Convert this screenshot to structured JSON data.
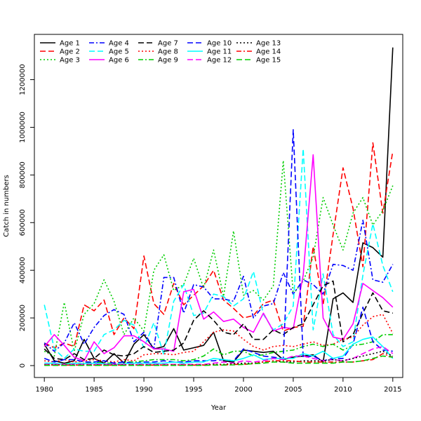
{
  "chart_data": {
    "type": "line",
    "title": "",
    "xlabel": "Year",
    "ylabel": "Catch in numbers",
    "xlim": [
      1979,
      2016
    ],
    "ylim": [
      -50000,
      1390000
    ],
    "xticks": [
      1980,
      1985,
      1990,
      1995,
      2000,
      2005,
      2010,
      2015
    ],
    "yticks": [
      0,
      200000,
      400000,
      600000,
      800000,
      1000000,
      1200000
    ],
    "legend_position": "top-left",
    "x": [
      1980,
      1981,
      1982,
      1983,
      1984,
      1985,
      1986,
      1987,
      1988,
      1989,
      1990,
      1991,
      1992,
      1993,
      1994,
      1995,
      1996,
      1997,
      1998,
      1999,
      2000,
      2001,
      2002,
      2003,
      2004,
      2005,
      2006,
      2007,
      2008,
      2009,
      2010,
      2011,
      2012,
      2013,
      2014,
      2015
    ],
    "series": [
      {
        "name": "Age 1",
        "color": "#000000",
        "dash": "solid",
        "values": [
          90000,
          20000,
          10000,
          20000,
          110000,
          30000,
          10000,
          50000,
          10000,
          90000,
          130000,
          70000,
          80000,
          155000,
          65000,
          75000,
          85000,
          140000,
          20000,
          15000,
          65000,
          60000,
          55000,
          60000,
          25000,
          35000,
          40000,
          45000,
          15000,
          280000,
          305000,
          265000,
          515000,
          495000,
          455000,
          1335000
        ]
      },
      {
        "name": "Age 2",
        "color": "#ff0000",
        "dash": "8,4",
        "values": [
          95000,
          75000,
          95000,
          80000,
          255000,
          230000,
          275000,
          130000,
          200000,
          155000,
          460000,
          260000,
          215000,
          345000,
          255000,
          295000,
          335000,
          400000,
          275000,
          240000,
          200000,
          210000,
          260000,
          275000,
          145000,
          160000,
          165000,
          500000,
          255000,
          550000,
          830000,
          660000,
          415000,
          935000,
          640000,
          900000
        ]
      },
      {
        "name": "Age 3",
        "color": "#00cd00",
        "dash": "2,3",
        "values": [
          60000,
          40000,
          265000,
          60000,
          215000,
          260000,
          360000,
          270000,
          130000,
          200000,
          145000,
          400000,
          465000,
          315000,
          340000,
          450000,
          325000,
          485000,
          290000,
          565000,
          295000,
          315000,
          275000,
          335000,
          860000,
          300000,
          355000,
          455000,
          705000,
          590000,
          485000,
          640000,
          705000,
          590000,
          650000,
          755000
        ]
      },
      {
        "name": "Age 4",
        "color": "#0000ff",
        "dash": "7,3,2,3",
        "values": [
          95000,
          60000,
          95000,
          180000,
          90000,
          160000,
          210000,
          235000,
          215000,
          100000,
          140000,
          70000,
          370000,
          370000,
          220000,
          340000,
          330000,
          280000,
          280000,
          270000,
          375000,
          200000,
          250000,
          260000,
          390000,
          300000,
          360000,
          340000,
          300000,
          425000,
          420000,
          400000,
          610000,
          360000,
          350000,
          425000
        ]
      },
      {
        "name": "Age 5",
        "color": "#00ffff",
        "dash": "8,4",
        "values": [
          255000,
          70000,
          30000,
          70000,
          60000,
          60000,
          130000,
          150000,
          190000,
          170000,
          75000,
          180000,
          45000,
          270000,
          340000,
          210000,
          220000,
          300000,
          290000,
          250000,
          280000,
          395000,
          215000,
          150000,
          175000,
          250000,
          910000,
          150000,
          385000,
          130000,
          80000,
          100000,
          380000,
          595000,
          420000,
          310000
        ]
      },
      {
        "name": "Age 6",
        "color": "#ff00ff",
        "dash": "solid",
        "values": [
          80000,
          130000,
          85000,
          35000,
          20000,
          100000,
          50000,
          75000,
          125000,
          125000,
          100000,
          70000,
          70000,
          60000,
          310000,
          320000,
          195000,
          225000,
          185000,
          195000,
          160000,
          140000,
          220000,
          145000,
          160000,
          155000,
          380000,
          885000,
          200000,
          120000,
          110000,
          175000,
          345000,
          315000,
          285000,
          245000
        ]
      },
      {
        "name": "Age 7",
        "color": "#000000",
        "dash": "8,4",
        "values": [
          70000,
          30000,
          25000,
          50000,
          25000,
          30000,
          65000,
          45000,
          40000,
          50000,
          80000,
          55000,
          60000,
          65000,
          95000,
          190000,
          230000,
          190000,
          140000,
          130000,
          175000,
          110000,
          110000,
          150000,
          130000,
          160000,
          175000,
          255000,
          335000,
          355000,
          100000,
          130000,
          220000,
          305000,
          230000,
          220000
        ]
      },
      {
        "name": "Age 8",
        "color": "#ff0000",
        "dash": "2,3",
        "values": [
          20000,
          15000,
          25000,
          15000,
          20000,
          25000,
          20000,
          15000,
          25000,
          20000,
          45000,
          50000,
          50000,
          45000,
          55000,
          60000,
          100000,
          140000,
          150000,
          145000,
          110000,
          80000,
          65000,
          80000,
          85000,
          80000,
          90000,
          100000,
          85000,
          90000,
          110000,
          120000,
          170000,
          205000,
          215000,
          135000
        ]
      },
      {
        "name": "Age 9",
        "color": "#00cd00",
        "dash": "7,3,2,3",
        "values": [
          5000,
          5000,
          8000,
          10000,
          10000,
          15000,
          10000,
          10000,
          15000,
          15000,
          20000,
          25000,
          25000,
          25000,
          20000,
          25000,
          40000,
          70000,
          45000,
          60000,
          60000,
          40000,
          45000,
          55000,
          60000,
          65000,
          80000,
          90000,
          80000,
          90000,
          65000,
          85000,
          90000,
          100000,
          130000,
          130000
        ]
      },
      {
        "name": "Age 10",
        "color": "#0000ff",
        "dash": "8,4",
        "values": [
          30000,
          15000,
          25000,
          25000,
          15000,
          15000,
          20000,
          10000,
          15000,
          10000,
          15000,
          15000,
          20000,
          15000,
          15000,
          20000,
          20000,
          20000,
          25000,
          20000,
          70000,
          55000,
          40000,
          35000,
          30000,
          990000,
          35000,
          40000,
          20000,
          30000,
          30000,
          90000,
          245000,
          100000,
          65000,
          60000
        ]
      },
      {
        "name": "Age 11",
        "color": "#00ffff",
        "dash": "solid",
        "values": [
          10000,
          10000,
          5000,
          10000,
          8000,
          10000,
          8000,
          5000,
          8000,
          10000,
          10000,
          10000,
          10000,
          15000,
          10000,
          15000,
          15000,
          30000,
          25000,
          20000,
          30000,
          45000,
          25000,
          30000,
          30000,
          30000,
          50000,
          40000,
          60000,
          30000,
          40000,
          90000,
          110000,
          120000,
          80000,
          30000
        ]
      },
      {
        "name": "Age 12",
        "color": "#ff00ff",
        "dash": "8,4",
        "values": [
          5000,
          5000,
          5000,
          5000,
          5000,
          5000,
          5000,
          5000,
          5000,
          5000,
          5000,
          5000,
          5000,
          5000,
          5000,
          5000,
          5000,
          10000,
          15000,
          10000,
          20000,
          15000,
          20000,
          30000,
          25000,
          40000,
          40000,
          30000,
          20000,
          25000,
          20000,
          30000,
          50000,
          70000,
          80000,
          50000
        ]
      },
      {
        "name": "Age 13",
        "color": "#000000",
        "dash": "2,3",
        "values": [
          3000,
          3000,
          3000,
          3000,
          3000,
          3000,
          3000,
          3000,
          3000,
          3000,
          3000,
          3000,
          3000,
          3000,
          3000,
          3000,
          3000,
          5000,
          5000,
          8000,
          10000,
          10000,
          15000,
          20000,
          15000,
          15000,
          20000,
          20000,
          20000,
          25000,
          20000,
          30000,
          40000,
          50000,
          60000,
          40000
        ]
      },
      {
        "name": "Age 14",
        "color": "#ff0000",
        "dash": "7,3,2,3",
        "values": [
          2000,
          2000,
          2000,
          2000,
          2000,
          2000,
          2000,
          2000,
          2000,
          2000,
          2000,
          2000,
          2000,
          2000,
          2000,
          2000,
          2000,
          3000,
          3000,
          5000,
          5000,
          8000,
          15000,
          20000,
          20000,
          20000,
          15000,
          15000,
          15000,
          15000,
          15000,
          15000,
          20000,
          25000,
          50000,
          35000
        ]
      },
      {
        "name": "Age 15",
        "color": "#00cd00",
        "dash": "8,4",
        "values": [
          1000,
          1000,
          1000,
          1000,
          1000,
          1000,
          1000,
          1000,
          1000,
          1000,
          1000,
          1000,
          1000,
          1000,
          1000,
          1000,
          1000,
          2000,
          2000,
          3000,
          5000,
          8000,
          10000,
          15000,
          15000,
          10000,
          10000,
          10000,
          10000,
          10000,
          15000,
          15000,
          20000,
          30000,
          40000,
          35000
        ]
      }
    ]
  }
}
